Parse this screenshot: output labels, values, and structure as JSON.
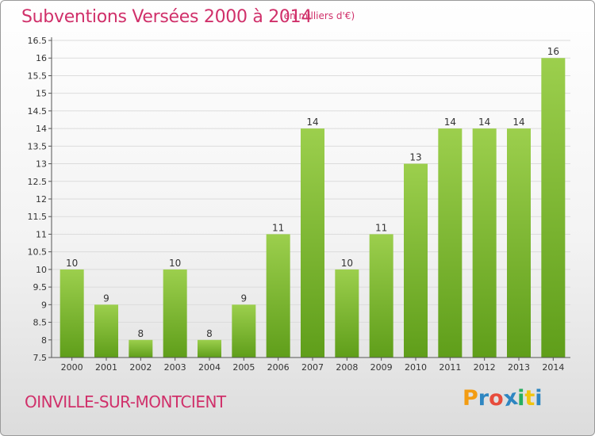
{
  "header": {
    "title": "Subventions Versées 2000 à 2014",
    "unit": "(en milliers d'€)"
  },
  "footer": {
    "commune": "OINVILLE-SUR-MONTCIENT",
    "logo_letters": [
      "P",
      "r",
      "o",
      "x",
      "i",
      "t",
      "i"
    ],
    "logo_colors": [
      "#f39c12",
      "#2e86c1",
      "#e74c3c",
      "#2e86c1",
      "#27ae60",
      "#f1c40f",
      "#2e86c1"
    ]
  },
  "colors": {
    "bar_top": "#9ccf4d",
    "bar_bottom": "#5f9e1a",
    "grid": "#dcdcdc",
    "axis": "#555555",
    "title": "#d0306a"
  },
  "chart_data": {
    "type": "bar",
    "title": "Subventions Versées 2000 à 2014",
    "xlabel": "",
    "ylabel": "",
    "categories": [
      "2000",
      "2001",
      "2002",
      "2003",
      "2004",
      "2005",
      "2006",
      "2007",
      "2008",
      "2009",
      "2010",
      "2011",
      "2012",
      "2013",
      "2014"
    ],
    "values": [
      10,
      9,
      8,
      10,
      8,
      9,
      11,
      14,
      10,
      11,
      13,
      14,
      14,
      14,
      16
    ],
    "value_labels": [
      "10",
      "9",
      "8",
      "10",
      "8",
      "9",
      "11",
      "14",
      "10",
      "11",
      "13",
      "14",
      "14",
      "14",
      "16"
    ],
    "ylim": [
      7.5,
      16.5
    ],
    "yticks": [
      7.5,
      8,
      8.5,
      9,
      9.5,
      10,
      10.5,
      11,
      11.5,
      12,
      12.5,
      13,
      13.5,
      14,
      14.5,
      15,
      15.5,
      16,
      16.5
    ],
    "ytick_labels": [
      "7.5",
      "8",
      "8.5",
      "9",
      "9.5",
      "10",
      "10.5",
      "11",
      "11.5",
      "12",
      "12.5",
      "13",
      "13.5",
      "14",
      "14.5",
      "15",
      "15.5",
      "16",
      "16.5"
    ],
    "grid": true,
    "legend": "none"
  }
}
